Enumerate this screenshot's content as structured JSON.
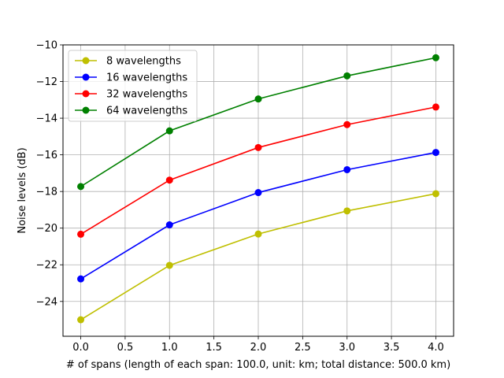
{
  "chart_data": {
    "type": "line",
    "title": "",
    "xlabel": "# of spans (length of each span: 100.0, unit: km; total distance: 500.0 km)",
    "ylabel": "Noise levels (dB)",
    "xlim": [
      -0.2,
      4.2
    ],
    "ylim": [
      -25.9,
      -10.0
    ],
    "xticks": [
      0.0,
      0.5,
      1.0,
      1.5,
      2.0,
      2.5,
      3.0,
      3.5,
      4.0
    ],
    "xtick_labels": [
      "0.0",
      "0.5",
      "1.0",
      "1.5",
      "2.0",
      "2.5",
      "3.0",
      "3.5",
      "4.0"
    ],
    "yticks": [
      -24,
      -22,
      -20,
      -18,
      -16,
      -14,
      -12,
      -10
    ],
    "ytick_labels": [
      "−24",
      "−22",
      "−20",
      "−18",
      "−16",
      "−14",
      "−12",
      "−10"
    ],
    "grid": true,
    "legend_position": "top-left",
    "x": [
      0,
      1,
      2,
      3,
      4
    ],
    "series": [
      {
        "name": "8 wavelengths",
        "color": "#bfbf00",
        "values": [
          -25.0,
          -22.03,
          -20.32,
          -19.06,
          -18.12
        ]
      },
      {
        "name": "16 wavelengths",
        "color": "#0000ff",
        "values": [
          -22.77,
          -19.82,
          -18.06,
          -16.81,
          -15.87
        ]
      },
      {
        "name": "32 wavelengths",
        "color": "#ff0000",
        "values": [
          -20.33,
          -17.38,
          -15.6,
          -14.35,
          -13.39
        ]
      },
      {
        "name": "64 wavelengths",
        "color": "#008000",
        "values": [
          -17.73,
          -14.69,
          -12.95,
          -11.69,
          -10.7
        ]
      }
    ]
  }
}
